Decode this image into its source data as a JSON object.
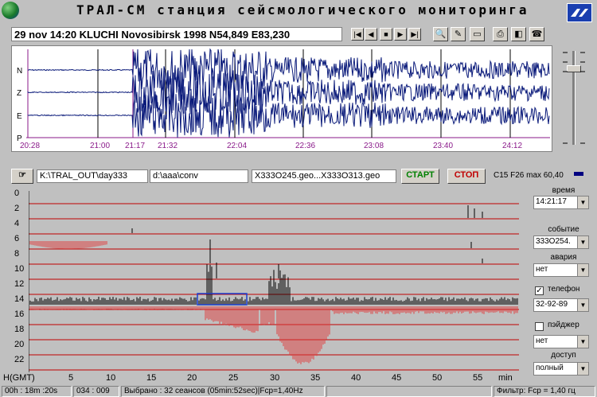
{
  "header": {
    "title": "ТРАЛ-СМ  станция сейсмологического мониторинга",
    "info": "29 nov 14:20 KLUCHI  Novosibirsk 1998 N54,849 E83,230"
  },
  "toolbar": {
    "nav_icons": [
      "first-icon",
      "prev-icon",
      "pause-icon",
      "next-icon",
      "last-icon"
    ],
    "tool_icons": [
      "zoom-icon",
      "edit-icon",
      "folder-icon",
      "print-icon",
      "palette-icon",
      "phone-icon"
    ]
  },
  "waveform": {
    "channels": [
      "N",
      "Z",
      "E",
      "P"
    ],
    "time_labels": [
      "20:28",
      "21:00",
      "21:17",
      "21:32",
      "22:04",
      "22:36",
      "23:08",
      "23:40",
      "24:12"
    ]
  },
  "paths": {
    "source": "K:\\TRAL_OUT\\day333",
    "dest": "d:\\aaa\\conv",
    "files": "X333O245.geo...X333O313.geo",
    "start_label": "СТАРТ",
    "stop_label": "СТОП",
    "params": "C15 F26 max 60,40"
  },
  "chart": {
    "y_labels": [
      "0",
      "2",
      "4",
      "6",
      "8",
      "10",
      "12",
      "14",
      "16",
      "18",
      "20",
      "22"
    ],
    "x_axis_label": "H(GMT)",
    "x_labels": [
      "5",
      "10",
      "15",
      "20",
      "25",
      "30",
      "35",
      "40",
      "45",
      "50",
      "55"
    ],
    "x_unit": "min"
  },
  "side": {
    "time_label": "время",
    "time_value": "14:21:17",
    "event_label": "событие",
    "event_value": "333O254.",
    "alarm_label": "авария",
    "alarm_value": "нет",
    "phone_label": "телефон",
    "phone_checked": true,
    "phone_value": "32-92-89",
    "pager_label": "пэйджер",
    "pager_checked": false,
    "pager_value": "нет",
    "access_label": "доступ",
    "access_value": "полный"
  },
  "status": {
    "duration": "00h : 18m :20s",
    "counter": "034 : 009",
    "selection": "Выбрано : 32 сеансов (05min:52sec)|Fcp=1,40Hz",
    "filter": "Фильтр: Fcp = 1,40 гц"
  },
  "colors": {
    "wave": "#0a1a7a",
    "grid": "#8a1a8a",
    "time_text": "#8a1a8a",
    "hours_line": "#c00000",
    "histogram": "#000000",
    "negative": "#e04040",
    "start_btn": "#008000",
    "stop_btn": "#c00000"
  }
}
